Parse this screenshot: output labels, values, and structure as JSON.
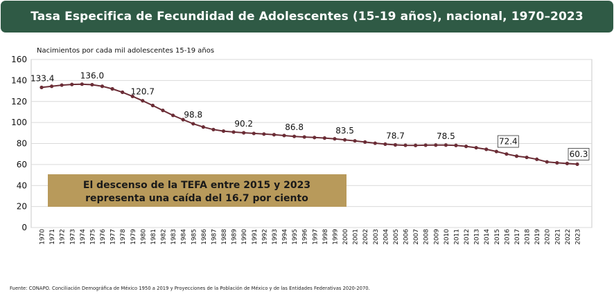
{
  "title": "Tasa Especifica de Fecundidad de Adolescentes (15-19 años), nacional, 1970–2023",
  "source": "Fuente: CONAPO. Conciliación Demográfica de México 1950 a 2019 y Proyecciones de la Población de México y de las Entidades Federativas 2020-2070.",
  "colors": {
    "banner": "#2f5a45",
    "line": "#6b2d36",
    "callout": "#b89a5b",
    "grid": "#d9d9d9"
  },
  "chart_data": {
    "type": "line",
    "ylabel": "Nacimientos por cada mil adolescentes 15-19 años",
    "ylim": [
      0,
      160
    ],
    "yticks": [
      0,
      20,
      40,
      60,
      80,
      100,
      120,
      140,
      160
    ],
    "grid": true,
    "x": [
      1970,
      1971,
      1972,
      1973,
      1974,
      1975,
      1976,
      1977,
      1978,
      1979,
      1980,
      1981,
      1982,
      1983,
      1984,
      1985,
      1986,
      1987,
      1988,
      1989,
      1990,
      1991,
      1992,
      1993,
      1994,
      1995,
      1996,
      1997,
      1998,
      1999,
      2000,
      2001,
      2002,
      2003,
      2004,
      2005,
      2006,
      2007,
      2008,
      2009,
      2010,
      2011,
      2012,
      2013,
      2014,
      2015,
      2016,
      2017,
      2018,
      2019,
      2020,
      2021,
      2022,
      2023
    ],
    "series": [
      {
        "values": [
          133.4,
          134.5,
          135.6,
          136.2,
          136.5,
          136.0,
          134.5,
          132.0,
          128.8,
          124.9,
          120.7,
          116.2,
          111.5,
          106.8,
          102.7,
          98.8,
          95.7,
          93.3,
          91.8,
          90.9,
          90.2,
          89.6,
          89.0,
          88.4,
          87.6,
          86.8,
          86.2,
          85.7,
          85.2,
          84.5,
          83.5,
          82.5,
          81.4,
          80.3,
          79.4,
          78.7,
          78.3,
          78.2,
          78.4,
          78.5,
          78.5,
          78.2,
          77.3,
          76.0,
          74.5,
          72.4,
          70.0,
          68.0,
          66.8,
          65.0,
          62.5,
          61.6,
          61.0,
          60.3
        ]
      }
    ],
    "labels": [
      {
        "year": 1970,
        "text": "133.4"
      },
      {
        "year": 1975,
        "text": "136.0"
      },
      {
        "year": 1980,
        "text": "120.7"
      },
      {
        "year": 1985,
        "text": "98.8"
      },
      {
        "year": 1990,
        "text": "90.2"
      },
      {
        "year": 1995,
        "text": "86.8"
      },
      {
        "year": 2000,
        "text": "83.5"
      },
      {
        "year": 2005,
        "text": "78.7"
      },
      {
        "year": 2010,
        "text": "78.5"
      },
      {
        "year": 2015,
        "text": "72.4",
        "boxed": true
      },
      {
        "year": 2023,
        "text": "60.3",
        "boxed": true
      }
    ],
    "annotation": [
      "El descenso de la TEFA entre 2015 y 2023",
      "representa una caída del 16.7 por ciento"
    ]
  }
}
